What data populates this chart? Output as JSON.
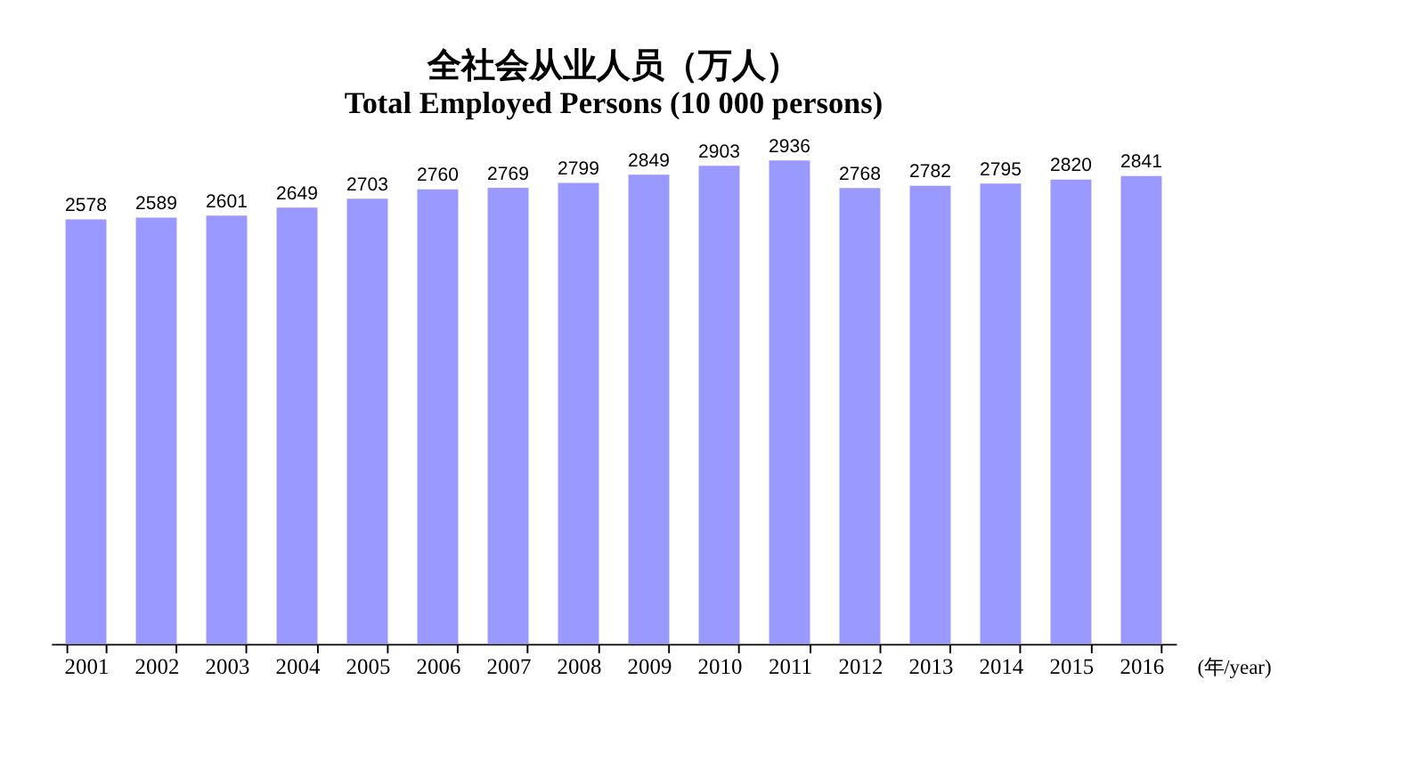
{
  "chart_data": {
    "type": "bar",
    "title": "全社会从业人员（万人）",
    "subtitle": "Total Employed Persons (10 000 persons)",
    "xlabel": "(年/year)",
    "categories": [
      "2001",
      "2002",
      "2003",
      "2004",
      "2005",
      "2006",
      "2007",
      "2008",
      "2009",
      "2010",
      "2011",
      "2012",
      "2013",
      "2014",
      "2015",
      "2016"
    ],
    "values": [
      2578,
      2589,
      2601,
      2649,
      2703,
      2760,
      2769,
      2799,
      2849,
      2903,
      2936,
      2768,
      2782,
      2795,
      2820,
      2841
    ],
    "color": "#9999ff",
    "data_labels": true,
    "grid": false,
    "tick_labels": "x"
  }
}
